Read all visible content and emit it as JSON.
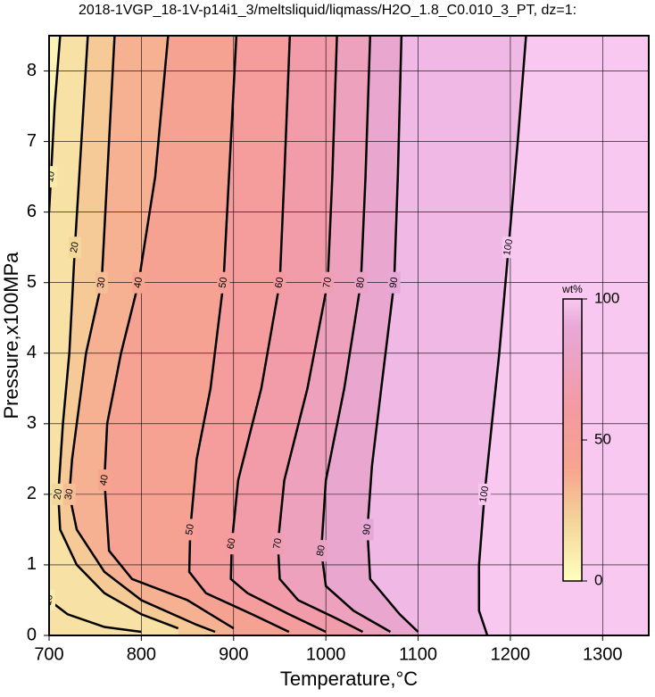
{
  "chart_data": {
    "type": "contour",
    "title": "2018-1VGP_18-1V-p14i1_3/meltsliquid/liqmass/H2O_1.8_C0.010_3_PT, dz=1:",
    "x_label": "Temperature,°C",
    "y_label": "Pressure,x100MPa",
    "xlim": [
      700,
      1350
    ],
    "xticks": [
      700,
      800,
      900,
      1000,
      1100,
      1200,
      1300
    ],
    "ylim": [
      0,
      8.5
    ],
    "yticks": [
      0,
      1,
      2,
      3,
      4,
      5,
      6,
      7,
      8
    ],
    "grid": true,
    "background_color": "#f8c8f0",
    "contours": [
      {
        "level": 10,
        "x": [
          712,
          706,
          702,
          700,
          null,
          700,
          720,
          760,
          800
        ],
        "y": [
          8.5,
          7.5,
          6.5,
          6,
          null,
          0.5,
          0.3,
          0.12,
          0.05
        ]
      },
      {
        "level": 20,
        "x": [
          742,
          735,
          728,
          722,
          715,
          710,
          712,
          730,
          760,
          800,
          840
        ],
        "y": [
          8.5,
          7,
          5.5,
          4,
          3,
          2,
          1.5,
          1,
          0.6,
          0.3,
          0.1
        ]
      },
      {
        "level": 30,
        "x": [
          771,
          765,
          757,
          740,
          725,
          722,
          730,
          760,
          800,
          860,
          880
        ],
        "y": [
          8.5,
          7,
          5,
          4,
          2.5,
          2,
          1.5,
          0.9,
          0.5,
          0.15,
          0.05
        ]
      },
      {
        "level": 40,
        "x": [
          829,
          815,
          797,
          778,
          763,
          760,
          765,
          790,
          850,
          900
        ],
        "y": [
          8.5,
          6.5,
          5,
          4,
          3,
          2.2,
          1.2,
          0.8,
          0.5,
          0.1
        ]
      },
      {
        "level": 50,
        "x": [
          903,
          895,
          889,
          875,
          860,
          853,
          852,
          870,
          920,
          960
        ],
        "y": [
          8.5,
          6.5,
          5,
          3.5,
          2.5,
          1.5,
          0.9,
          0.6,
          0.3,
          0.05
        ]
      },
      {
        "level": 60,
        "x": [
          961,
          955,
          950,
          930,
          905,
          898,
          897,
          915,
          960,
          1000
        ],
        "y": [
          8.5,
          6.5,
          5,
          3.5,
          2.2,
          1.3,
          0.8,
          0.6,
          0.3,
          0.05
        ]
      },
      {
        "level": 70,
        "x": [
          1012,
          1007,
          1002,
          980,
          955,
          948,
          950,
          970,
          1010,
          1040
        ],
        "y": [
          8.5,
          6.5,
          5,
          3.5,
          2.2,
          1.3,
          0.8,
          0.5,
          0.25,
          0.05
        ]
      },
      {
        "level": 80,
        "x": [
          1048,
          1043,
          1038,
          1020,
          1000,
          995,
          1000,
          1030,
          1070
        ],
        "y": [
          8.5,
          6.5,
          5,
          3.5,
          2.2,
          1.2,
          0.7,
          0.35,
          0.05
        ]
      },
      {
        "level": 90,
        "x": [
          1082,
          1078,
          1074,
          1060,
          1050,
          1045,
          1048,
          1080,
          1100
        ],
        "y": [
          8.5,
          6.5,
          5,
          3.5,
          2.4,
          1.5,
          0.8,
          0.3,
          0.05
        ]
      },
      {
        "level": 100,
        "x": [
          1217,
          1208,
          1198,
          1188,
          1180,
          1172,
          1166,
          1166,
          1175
        ],
        "y": [
          8.5,
          7,
          5.5,
          4,
          3,
          2,
          1,
          0.35,
          0
        ]
      }
    ],
    "colorbar": {
      "label": "wt%",
      "lim": [
        0,
        100
      ],
      "ticks": [
        0,
        50,
        100
      ],
      "stops": [
        {
          "value": 0,
          "color": "#ffffc0"
        },
        {
          "value": 20,
          "color": "#f4d79a"
        },
        {
          "value": 40,
          "color": "#f7a48f"
        },
        {
          "value": 60,
          "color": "#f49aa0"
        },
        {
          "value": 90,
          "color": "#e7a8d8"
        },
        {
          "value": 100,
          "color": "#f8c8f0"
        }
      ]
    }
  }
}
